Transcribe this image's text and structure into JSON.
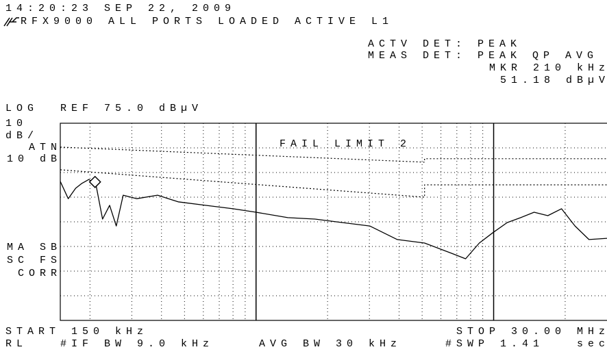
{
  "texts": {
    "time": "14:20:23 SEP 22, 2009",
    "setup": "RFX9000 ALL PORTS LOADED ACTIVE L1",
    "actv_det": "ACTV DET: PEAK",
    "meas_det": "MEAS DET: PEAK QP AVG",
    "marker_freq": "MKR 210 kHz",
    "marker_level": "51.18 dBµV",
    "scale": "LOG",
    "ref": "REF 75.0 dBµV",
    "div_num": "10",
    "div_unit": "dB/",
    "atn": "ATN",
    "atn_value": "10 dB",
    "ma_sb": "MA SB",
    "sc_fs": "SC FS",
    "corr": "CORR",
    "start": "START 150 kHz",
    "stop": "STOP 30.00 MHz",
    "rl": "RL",
    "if_bw": "#IF BW 9.0 kHz",
    "avg_bw": "AVG BW 30 kHz",
    "swp": "#SWP 1.41",
    "swp_unit": "sec"
  },
  "chart_data": {
    "type": "line",
    "log_x": true,
    "xlim": [
      150000,
      30000000
    ],
    "ylim": [
      -5,
      75
    ],
    "yticks": [
      5,
      15,
      25,
      35,
      45,
      55,
      65
    ],
    "xticks": [
      200000,
      300000,
      400000,
      500000,
      600000,
      700000,
      800000,
      900000,
      1000000,
      2000000,
      3000000,
      4000000,
      5000000,
      6000000,
      7000000,
      8000000,
      9000000,
      10000000,
      20000000
    ],
    "grid": true,
    "annotation": "FAIL LIMIT 2",
    "marker": {
      "x": 210000,
      "y": 51.18
    },
    "series": [
      {
        "color": "#000000",
        "style": "solid",
        "x": [
          150000,
          162000,
          174000,
          185000,
          198000,
          212000,
          226000,
          242000,
          258000,
          276000,
          315000,
          385000,
          470000,
          612000,
          799000,
          1000000,
          1360000,
          1770000,
          2310000,
          3010000,
          3930000,
          5120000,
          6670000,
          7620000,
          8700000,
          9930000,
          11400000,
          13000000,
          14800000,
          16900000,
          19300000,
          22000000,
          25200000,
          30000000
        ],
        "values": [
          51.4,
          44.4,
          48.6,
          50.6,
          52.2,
          50,
          36.1,
          41.7,
          33.3,
          45.8,
          44.4,
          45.8,
          43.1,
          41.7,
          40.3,
          38.9,
          36.7,
          36.1,
          34.7,
          33.3,
          27.8,
          26.4,
          22.2,
          20,
          26.4,
          30.6,
          34.7,
          36.7,
          38.9,
          37.5,
          40.3,
          33.3,
          27.8,
          28.3
        ]
      },
      {
        "color": "#000000",
        "style": "dotted",
        "x": [
          150000,
          5120000,
          5120000,
          30000000
        ],
        "values": [
          65.3,
          59.2,
          60.6,
          60.6
        ]
      },
      {
        "color": "#000000",
        "style": "dotted",
        "x": [
          150000,
          5120000,
          5120000,
          30000000
        ],
        "values": [
          56.1,
          45,
          50,
          50
        ]
      }
    ]
  }
}
